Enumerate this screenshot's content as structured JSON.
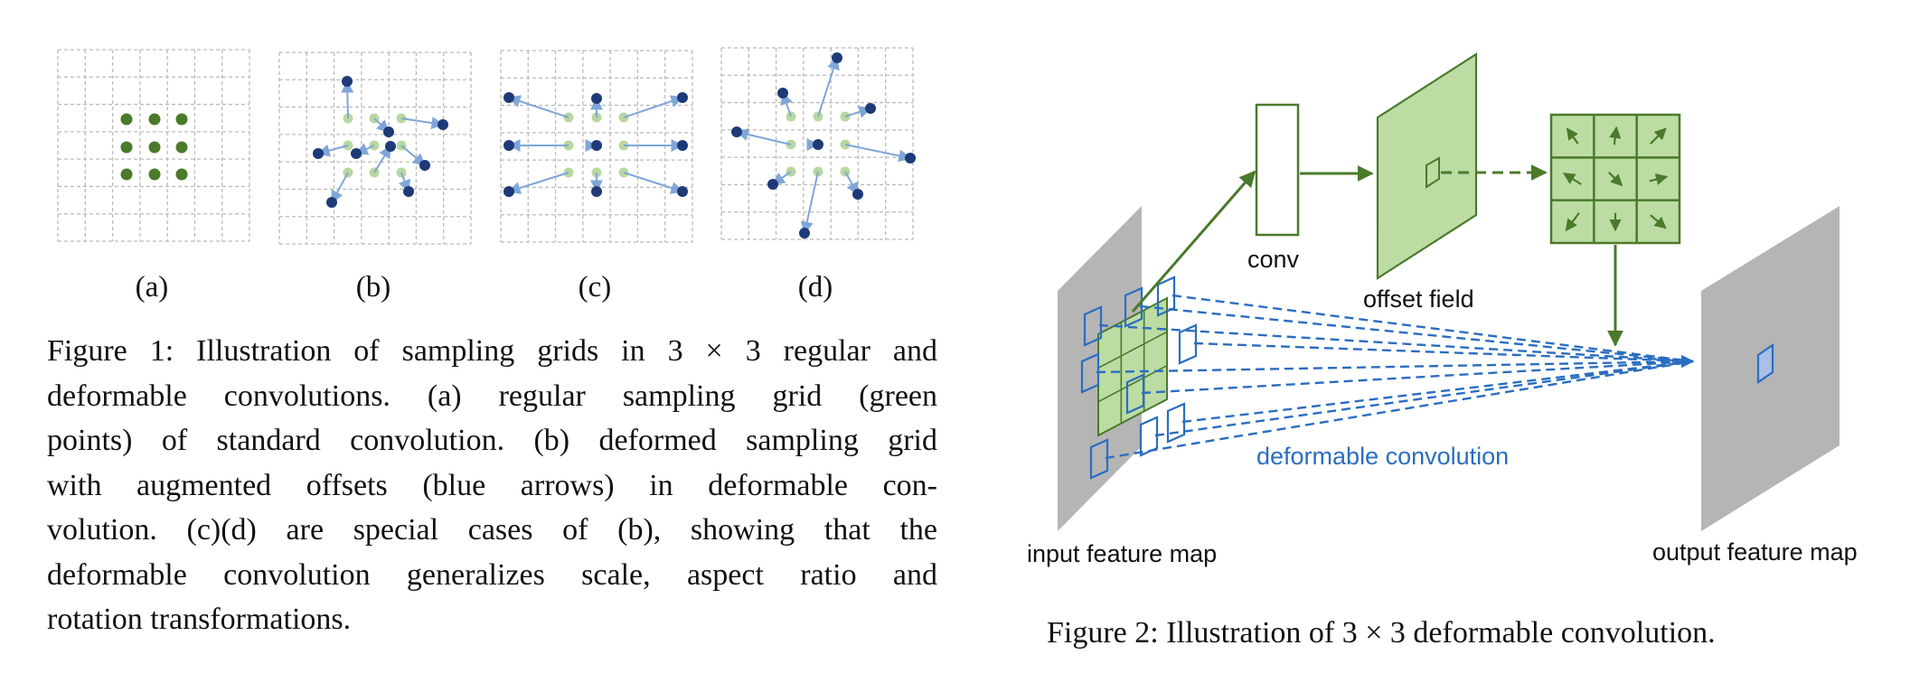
{
  "figure1": {
    "subfigure_labels": [
      "(a)",
      "(b)",
      "(c)",
      "(d)"
    ],
    "caption_lines": [
      "Figure 1: Illustration of sampling grids in 3 × 3 regular and",
      "deformable convolutions.  (a) regular sampling grid (green",
      "points) of standard convolution. (b) deformed sampling grid",
      "with augmented offsets (blue arrows) in deformable con-",
      "volution.  (c)(d) are special cases of (b), showing that the",
      "deformable convolution generalizes scale, aspect ratio and",
      "rotation transformations."
    ]
  },
  "figure2": {
    "labels": {
      "conv": "conv",
      "offset_field": "offset field",
      "deformable_convolution": "deformable convolution",
      "input_feature_map": "input feature map",
      "output_feature_map": "output feature map"
    },
    "caption": "Figure 2: Illustration of 3 × 3 deformable convolution."
  },
  "colors": {
    "regular_point": "#4a7a2a",
    "light_point": "#b8d8a0",
    "sampling_point": "#1e3a78",
    "offset_arrow": "#7fa6d8",
    "grid_line": "#bbbbbb",
    "feature_map": "#b5b5b5",
    "green_fill": "#bcdca4",
    "green_stroke": "#4a7a2a",
    "blue_line": "#2a6ec0"
  }
}
